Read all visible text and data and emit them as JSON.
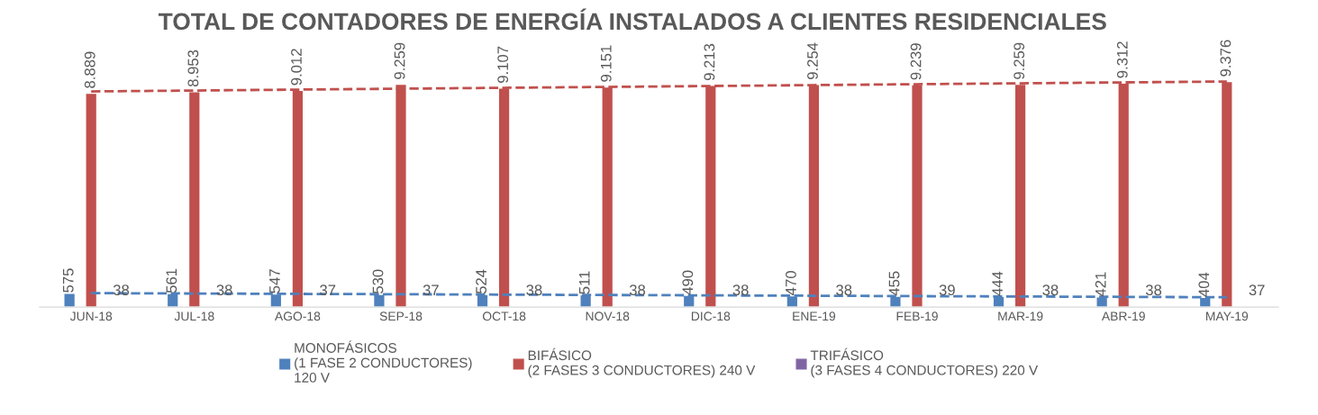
{
  "chart_data": {
    "type": "bar",
    "title": "TOTAL DE CONTADORES DE ENERGÍA INSTALADOS A CLIENTES RESIDENCIALES",
    "categories": [
      "JUN-18",
      "JUL-18",
      "AGO-18",
      "SEP-18",
      "OCT-18",
      "NOV-18",
      "DIC-18",
      "ENE-19",
      "FEB-19",
      "MAR-19",
      "ABR-19",
      "MAY-19"
    ],
    "series": [
      {
        "name": "MONOFÁSICOS\n(1 FASE 2 CONDUCTORES)\n120 V",
        "color": "#4f81bd",
        "values": [
          575,
          561,
          547,
          530,
          524,
          511,
          490,
          470,
          455,
          444,
          421,
          404
        ],
        "value_labels": [
          "575",
          "561",
          "547",
          "530",
          "524",
          "511",
          "490",
          "470",
          "455",
          "444",
          "421",
          "404"
        ]
      },
      {
        "name": "BIFÁSICO\n(2 FASES 3 CONDUCTORES) 240 V",
        "color": "#c0504d",
        "values": [
          8889,
          8953,
          9012,
          9259,
          9107,
          9151,
          9213,
          9254,
          9239,
          9259,
          9312,
          9376
        ],
        "value_labels": [
          "8.889",
          "8.953",
          "9.012",
          "9.259",
          "9.107",
          "9.151",
          "9.213",
          "9.254",
          "9.239",
          "9.259",
          "9.312",
          "9.376"
        ]
      },
      {
        "name": "TRIFÁSICO\n(3 FASES 4 CONDUCTORES) 220 V",
        "color": "#8064a2",
        "values": [
          38,
          38,
          37,
          37,
          38,
          38,
          38,
          38,
          39,
          38,
          38,
          37
        ],
        "value_labels": [
          "38",
          "38",
          "37",
          "37",
          "38",
          "38",
          "38",
          "38",
          "39",
          "38",
          "38",
          "37"
        ]
      },
      {
        "type": "line",
        "color": "#4f81bd",
        "line_style": "dashed",
        "values": [
          580,
          565,
          549,
          534,
          518,
          503,
          487,
          472,
          456,
          440,
          425,
          409
        ]
      },
      {
        "type": "line",
        "color": "#c0504d",
        "line_style": "dashed",
        "values": [
          8963,
          9000,
          9038,
          9075,
          9113,
          9150,
          9188,
          9225,
          9263,
          9300,
          9338,
          9375
        ]
      }
    ],
    "legend": "bottom",
    "grid": false
  }
}
